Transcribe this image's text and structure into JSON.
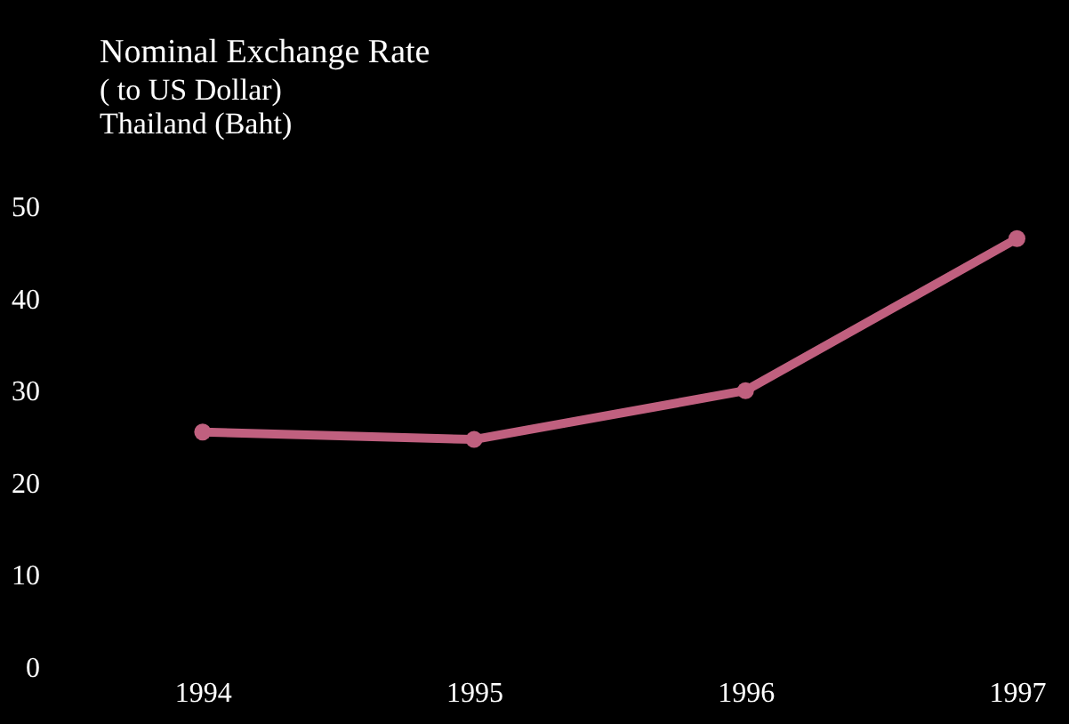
{
  "chart_data": {
    "type": "line",
    "title": "Nominal Exchange Rate",
    "subtitle": "( to US Dollar)",
    "annotations": [
      "Thailand (Baht)"
    ],
    "categories": [
      "1994",
      "1995",
      "1996",
      "1997"
    ],
    "series": [
      {
        "color": "#c0607f",
        "values": [
          25.5,
          24.7,
          30,
          46.5
        ]
      }
    ],
    "ylim": [
      0,
      50
    ],
    "yticks": [
      0,
      10,
      20,
      30,
      40,
      50
    ],
    "marker": "circle",
    "grid": false,
    "legend": false
  }
}
